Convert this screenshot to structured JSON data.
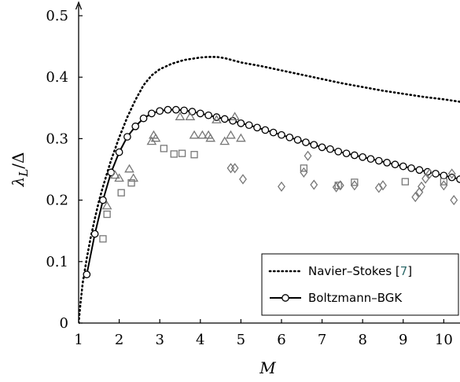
{
  "chart_data": {
    "type": "line",
    "xlabel": "M",
    "ylabel": "λ_L/Δ",
    "xlim": [
      1,
      10.4
    ],
    "ylim": [
      0,
      0.5
    ],
    "x_ticks": [
      "1",
      "2",
      "3",
      "4",
      "5",
      "6",
      "7",
      "8",
      "9",
      "10"
    ],
    "y_ticks": [
      "0",
      "0.1",
      "0.2",
      "0.3",
      "0.4",
      "0.5"
    ],
    "legend_position": "bottom-right",
    "legend": [
      {
        "label": "Navier–Stokes [",
        "ref": "7",
        "suffix": "]",
        "style": "dotted"
      },
      {
        "label": "Boltzmann–BGK",
        "style": "solid-circles"
      }
    ],
    "series": [
      {
        "name": "Navier–Stokes [7]",
        "style": "dotted",
        "color": "#000000",
        "x": [
          1.0,
          1.05,
          1.1,
          1.2,
          1.3,
          1.4,
          1.5,
          1.6,
          1.8,
          2.0,
          2.2,
          2.4,
          2.6,
          2.8,
          3.0,
          3.3,
          3.6,
          4.0,
          4.2,
          4.4,
          4.6,
          5.0,
          5.5,
          6.0,
          6.5,
          7.0,
          7.5,
          8.0,
          8.5,
          9.0,
          9.5,
          10.0,
          10.4
        ],
        "y": [
          0.0,
          0.035,
          0.065,
          0.105,
          0.14,
          0.17,
          0.198,
          0.222,
          0.265,
          0.302,
          0.335,
          0.363,
          0.387,
          0.403,
          0.413,
          0.422,
          0.428,
          0.432,
          0.433,
          0.433,
          0.431,
          0.424,
          0.418,
          0.411,
          0.404,
          0.397,
          0.39,
          0.384,
          0.378,
          0.373,
          0.368,
          0.364,
          0.36
        ]
      },
      {
        "name": "Boltzmann–BGK",
        "style": "solid-circles",
        "color": "#000000",
        "x": [
          1.2,
          1.4,
          1.6,
          1.8,
          2.0,
          2.2,
          2.4,
          2.6,
          2.8,
          3.0,
          3.2,
          3.4,
          3.6,
          3.8,
          4.0,
          4.2,
          4.4,
          4.6,
          4.8,
          5.0,
          5.2,
          5.4,
          5.6,
          5.8,
          6.0,
          6.2,
          6.4,
          6.6,
          6.8,
          7.0,
          7.2,
          7.4,
          7.6,
          7.8,
          8.0,
          8.2,
          8.4,
          8.6,
          8.8,
          9.0,
          9.2,
          9.4,
          9.6,
          9.8,
          10.0,
          10.2,
          10.4
        ],
        "y": [
          0.079,
          0.145,
          0.2,
          0.245,
          0.278,
          0.303,
          0.32,
          0.333,
          0.341,
          0.345,
          0.347,
          0.347,
          0.346,
          0.344,
          0.341,
          0.338,
          0.335,
          0.332,
          0.329,
          0.325,
          0.322,
          0.318,
          0.314,
          0.31,
          0.306,
          0.302,
          0.298,
          0.294,
          0.29,
          0.286,
          0.283,
          0.279,
          0.276,
          0.273,
          0.27,
          0.267,
          0.264,
          0.261,
          0.258,
          0.255,
          0.252,
          0.249,
          0.246,
          0.243,
          0.24,
          0.237,
          0.234
        ]
      },
      {
        "name": "triangles",
        "style": "triangle-markers",
        "color": "#777777",
        "x": [
          1.7,
          1.9,
          2.0,
          2.25,
          2.35,
          2.8,
          2.85,
          2.9,
          3.5,
          3.75,
          3.85,
          4.05,
          4.2,
          4.25,
          4.4,
          4.6,
          4.75,
          4.85,
          5.0
        ],
        "y": [
          0.19,
          0.24,
          0.235,
          0.25,
          0.235,
          0.295,
          0.305,
          0.3,
          0.335,
          0.335,
          0.305,
          0.305,
          0.305,
          0.3,
          0.33,
          0.295,
          0.305,
          0.335,
          0.3
        ]
      },
      {
        "name": "squares",
        "style": "square-markers",
        "color": "#777777",
        "x": [
          1.6,
          1.7,
          2.05,
          2.3,
          3.1,
          3.35,
          3.55,
          3.85,
          6.55,
          7.4,
          7.8,
          9.05,
          10.0
        ],
        "y": [
          0.137,
          0.177,
          0.212,
          0.228,
          0.284,
          0.275,
          0.276,
          0.274,
          0.252,
          0.224,
          0.229,
          0.23,
          0.23
        ]
      },
      {
        "name": "diamonds",
        "style": "diamond-markers",
        "color": "#777777",
        "x": [
          4.75,
          4.85,
          5.05,
          6.0,
          6.55,
          6.65,
          6.8,
          7.35,
          7.45,
          7.8,
          8.4,
          8.5,
          9.3,
          9.4,
          9.45,
          9.55,
          9.65,
          10.0,
          10.2,
          10.25
        ],
        "y": [
          0.252,
          0.252,
          0.234,
          0.222,
          0.245,
          0.272,
          0.225,
          0.221,
          0.224,
          0.224,
          0.22,
          0.224,
          0.205,
          0.213,
          0.222,
          0.235,
          0.243,
          0.224,
          0.243,
          0.2
        ]
      }
    ]
  }
}
